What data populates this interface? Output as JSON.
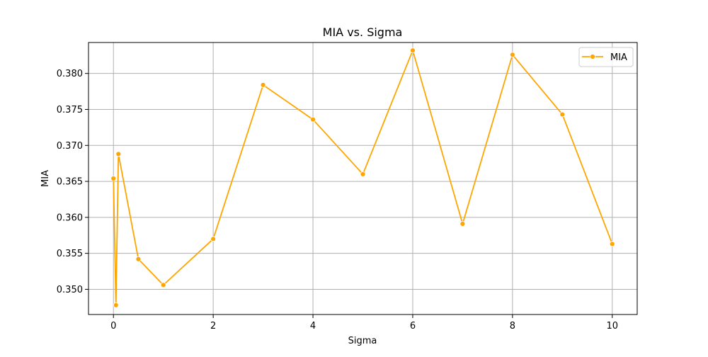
{
  "chart_data": {
    "type": "line",
    "title": "MIA vs. Sigma",
    "xlabel": "Sigma",
    "ylabel": "MIA",
    "xlim": [
      -0.5,
      10.5
    ],
    "ylim": [
      0.3465,
      0.3843
    ],
    "xticks": [
      0,
      2,
      4,
      6,
      8,
      10
    ],
    "xtick_labels": [
      "0",
      "2",
      "4",
      "6",
      "8",
      "10"
    ],
    "yticks": [
      0.35,
      0.355,
      0.36,
      0.365,
      0.37,
      0.375,
      0.38
    ],
    "ytick_labels": [
      "0.350",
      "0.355",
      "0.360",
      "0.365",
      "0.370",
      "0.375",
      "0.380"
    ],
    "grid": true,
    "legend_position": "top-right",
    "series": [
      {
        "name": "MIA",
        "color": "#FFA500",
        "marker": "circle",
        "x": [
          0,
          0.05,
          0.1,
          0.5,
          1,
          2,
          3,
          4,
          5,
          6,
          7,
          8,
          9,
          10
        ],
        "y": [
          0.3654,
          0.3478,
          0.3688,
          0.3542,
          0.3506,
          0.357,
          0.3784,
          0.3736,
          0.366,
          0.3832,
          0.3591,
          0.3826,
          0.3743,
          0.3563
        ]
      }
    ]
  }
}
